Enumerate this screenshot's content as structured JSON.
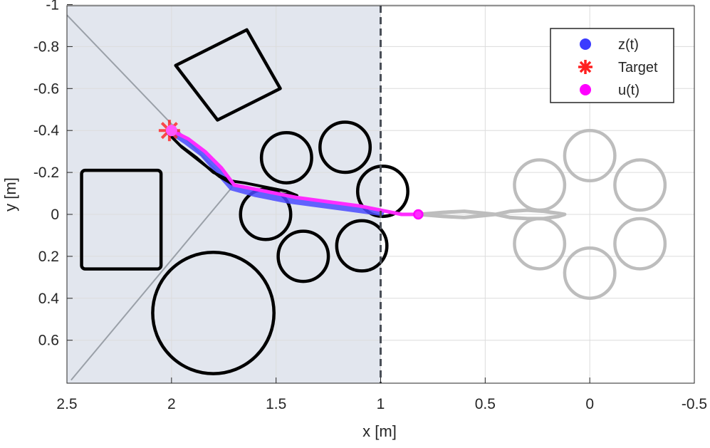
{
  "chart_data": {
    "type": "scatter",
    "xlabel": "x [m]",
    "ylabel": "y [m]",
    "xlim": [
      -0.5,
      2.5
    ],
    "ylim": [
      -1,
      0.8
    ],
    "x_reversed": true,
    "y_reversed": true,
    "grid": true,
    "x_ticks": [
      "2.5",
      "2",
      "1.5",
      "1",
      "0.5",
      "0",
      "-0.5"
    ],
    "y_ticks": [
      "-1",
      "-0.8",
      "-0.6",
      "-0.4",
      "-0.2",
      "0",
      "0.2",
      "0.4",
      "0.6"
    ],
    "y_tick_values": [
      -1,
      -0.8,
      -0.6,
      -0.4,
      -0.2,
      0,
      0.2,
      0.4,
      0.6
    ],
    "x_tick_values": [
      2.5,
      2,
      1.5,
      1,
      0.5,
      0,
      -0.5
    ],
    "legend": {
      "placement": "top-right",
      "entries": [
        {
          "label": "z(t)",
          "color": "#3b3bff",
          "marker": "circle"
        },
        {
          "label": "Target",
          "color": "#ff2020",
          "marker": "asterisk"
        },
        {
          "label": "u(t)",
          "color": "#ff00ff",
          "marker": "circle"
        }
      ]
    },
    "shaded_region": {
      "x_from": 1.0,
      "x_to": 2.5,
      "color": "#e2e6ee"
    },
    "boundary_line_x": 1.0,
    "diagonal_lines": [
      {
        "from": [
          2.5,
          -0.95
        ],
        "to": [
          1.71,
          -0.13
        ]
      },
      {
        "from": [
          1.71,
          -0.13
        ],
        "to": [
          2.48,
          0.79
        ]
      }
    ],
    "obstacles_real": {
      "color": "#000000",
      "circles": [
        {
          "cx": 1.45,
          "cy": -0.27,
          "r": 0.12
        },
        {
          "cx": 1.17,
          "cy": -0.32,
          "r": 0.12
        },
        {
          "cx": 0.99,
          "cy": -0.11,
          "r": 0.12
        },
        {
          "cx": 1.55,
          "cy": 0.0,
          "r": 0.12
        },
        {
          "cx": 1.37,
          "cy": 0.2,
          "r": 0.12
        },
        {
          "cx": 1.09,
          "cy": 0.15,
          "r": 0.12
        },
        {
          "cx": 1.8,
          "cy": 0.47,
          "r": 0.29
        }
      ],
      "rounded_rects": [
        {
          "x": 2.43,
          "y": -0.21,
          "w": 0.38,
          "h": 0.47,
          "rx": 0.02
        },
        {
          "corners": [
            [
              1.98,
              -0.71
            ],
            [
              1.64,
              -0.88
            ],
            [
              1.48,
              -0.6
            ],
            [
              1.78,
              -0.45
            ]
          ]
        }
      ]
    },
    "obstacles_model": {
      "color": "#bdbdbd",
      "circles": [
        {
          "cx": 0.0,
          "cy": -0.28,
          "r": 0.12
        },
        {
          "cx": -0.24,
          "cy": -0.14,
          "r": 0.12
        },
        {
          "cx": -0.24,
          "cy": 0.14,
          "r": 0.12
        },
        {
          "cx": 0.0,
          "cy": 0.28,
          "r": 0.12
        },
        {
          "cx": 0.24,
          "cy": 0.14,
          "r": 0.12
        },
        {
          "cx": 0.24,
          "cy": -0.14,
          "r": 0.12
        }
      ]
    },
    "series": [
      {
        "name": "z(t)",
        "color": "#4a4aff",
        "x": [
          1.99,
          1.93,
          1.85,
          1.78,
          1.71,
          1.6,
          1.45,
          1.3,
          1.15,
          1.0
        ],
        "y": [
          -0.39,
          -0.35,
          -0.29,
          -0.21,
          -0.13,
          -0.1,
          -0.07,
          -0.05,
          -0.03,
          -0.01
        ]
      },
      {
        "name": "u(t)",
        "color": "#ff2cff",
        "x": [
          2.0,
          1.92,
          1.84,
          1.76,
          1.7,
          1.55,
          1.4,
          1.25,
          1.1,
          1.0,
          0.9,
          0.82
        ],
        "y": [
          -0.4,
          -0.36,
          -0.3,
          -0.22,
          -0.14,
          -0.11,
          -0.08,
          -0.06,
          -0.04,
          -0.02,
          0.0,
          0.0
        ]
      }
    ],
    "black_path": {
      "color": "#000000",
      "x": [
        2.01,
        1.95,
        1.86,
        1.77,
        1.7,
        1.6,
        1.5,
        1.4,
        1.45,
        1.55,
        1.65,
        1.72,
        1.8,
        1.88,
        1.96,
        2.02
      ],
      "y": [
        -0.38,
        -0.32,
        -0.25,
        -0.18,
        -0.14,
        -0.12,
        -0.1,
        -0.09,
        -0.11,
        -0.13,
        -0.15,
        -0.16,
        -0.2,
        -0.27,
        -0.33,
        -0.39
      ]
    },
    "gray_path": {
      "color": "#bdbdbd",
      "x": [
        0.82,
        0.7,
        0.6,
        0.5,
        0.45,
        0.38,
        0.3,
        0.22,
        0.15,
        0.12,
        0.15,
        0.22,
        0.3,
        0.38,
        0.45,
        0.5,
        0.6,
        0.7,
        0.82
      ],
      "y": [
        0.0,
        -0.01,
        -0.015,
        -0.005,
        0.0,
        -0.015,
        -0.02,
        -0.015,
        -0.005,
        0.0,
        0.01,
        0.02,
        0.02,
        0.015,
        0.0,
        0.005,
        0.015,
        0.01,
        0.0
      ]
    },
    "target_point": {
      "x": 2.01,
      "y": -0.4,
      "color": "#ff2020"
    },
    "u_end_point": {
      "x": 0.82,
      "y": 0.0,
      "color": "#ff00ff"
    }
  }
}
